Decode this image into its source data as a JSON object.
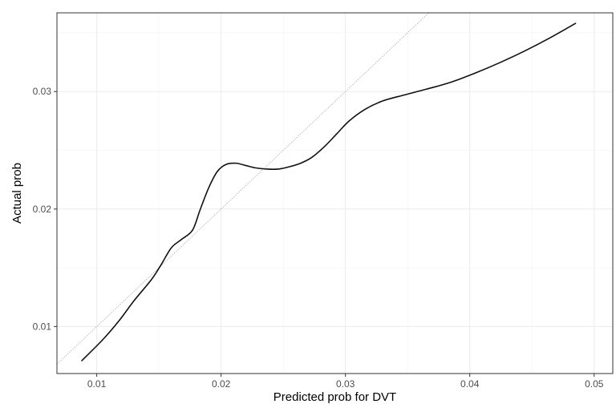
{
  "chart_data": {
    "type": "line",
    "title": "",
    "xlabel": "Predicted prob for DVT",
    "ylabel": "Actual prob",
    "xlim": [
      0.0068,
      0.0515
    ],
    "ylim": [
      0.006,
      0.0367
    ],
    "xticks": [
      0.01,
      0.02,
      0.03,
      0.04,
      0.05
    ],
    "yticks": [
      0.01,
      0.02,
      0.03
    ],
    "xtick_labels": [
      "0.01",
      "0.02",
      "0.03",
      "0.04",
      "0.05"
    ],
    "ytick_labels": [
      "0.01",
      "0.02",
      "0.03"
    ],
    "xminor": [
      0.015,
      0.025,
      0.035,
      0.045
    ],
    "yminor": [
      0.015,
      0.025,
      0.035
    ],
    "grid": true,
    "legend": "none",
    "reference_line": {
      "slope": 1,
      "intercept": 0,
      "style": "dotted",
      "color": "#aaaaaa"
    },
    "series": [
      {
        "color": "#111111",
        "x": [
          0.0088,
          0.0105,
          0.0118,
          0.013,
          0.0144,
          0.0152,
          0.016,
          0.0168,
          0.0177,
          0.0183,
          0.019,
          0.0197,
          0.0204,
          0.0212,
          0.022,
          0.0228,
          0.0237,
          0.0246,
          0.0255,
          0.0264,
          0.0273,
          0.0283,
          0.0293,
          0.0303,
          0.0316,
          0.033,
          0.0347,
          0.0365,
          0.0385,
          0.0405,
          0.0425,
          0.0445,
          0.0465,
          0.0485
        ],
        "y": [
          0.0071,
          0.0089,
          0.0105,
          0.0122,
          0.014,
          0.0153,
          0.0167,
          0.0174,
          0.0182,
          0.0199,
          0.0218,
          0.0232,
          0.0238,
          0.0239,
          0.0237,
          0.0235,
          0.0234,
          0.0234,
          0.0236,
          0.0239,
          0.0244,
          0.0253,
          0.0264,
          0.0275,
          0.0285,
          0.0292,
          0.0297,
          0.0302,
          0.0308,
          0.0316,
          0.0325,
          0.0335,
          0.0346,
          0.0358
        ]
      }
    ]
  }
}
